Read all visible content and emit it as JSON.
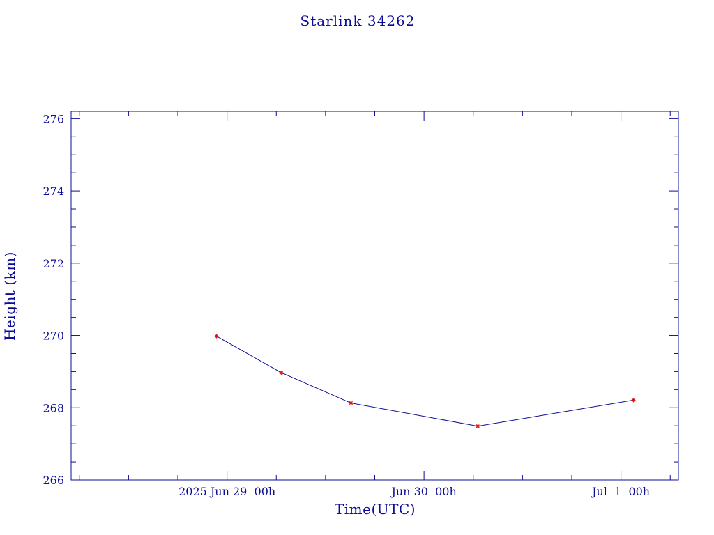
{
  "chart_data": {
    "type": "line",
    "title": "Starlink 34262",
    "xlabel": "Time(UTC)",
    "ylabel": "Height (km)",
    "x_ticks": [
      "2025 Jun 29  00h",
      "Jun 30  00h",
      "Jul  1  00h"
    ],
    "y_ticks": [
      "266",
      "268",
      "270",
      "272",
      "274",
      "276"
    ],
    "xlim": [
      "2025-06-28T05:00",
      "2025-07-01T07:00"
    ],
    "ylim": [
      266,
      276.2
    ],
    "series": [
      {
        "x": [
          "2025-06-28T22:43",
          "2025-06-29T06:36",
          "2025-06-29T15:06",
          "2025-06-30T06:33",
          "2025-07-01T01:31"
        ],
        "y": [
          269.98,
          268.97,
          268.13,
          267.49,
          268.21
        ]
      }
    ],
    "grid": false,
    "colors": {
      "axis": "#0c0c96",
      "line": "#0c0c96",
      "marker": "#e01010"
    }
  }
}
